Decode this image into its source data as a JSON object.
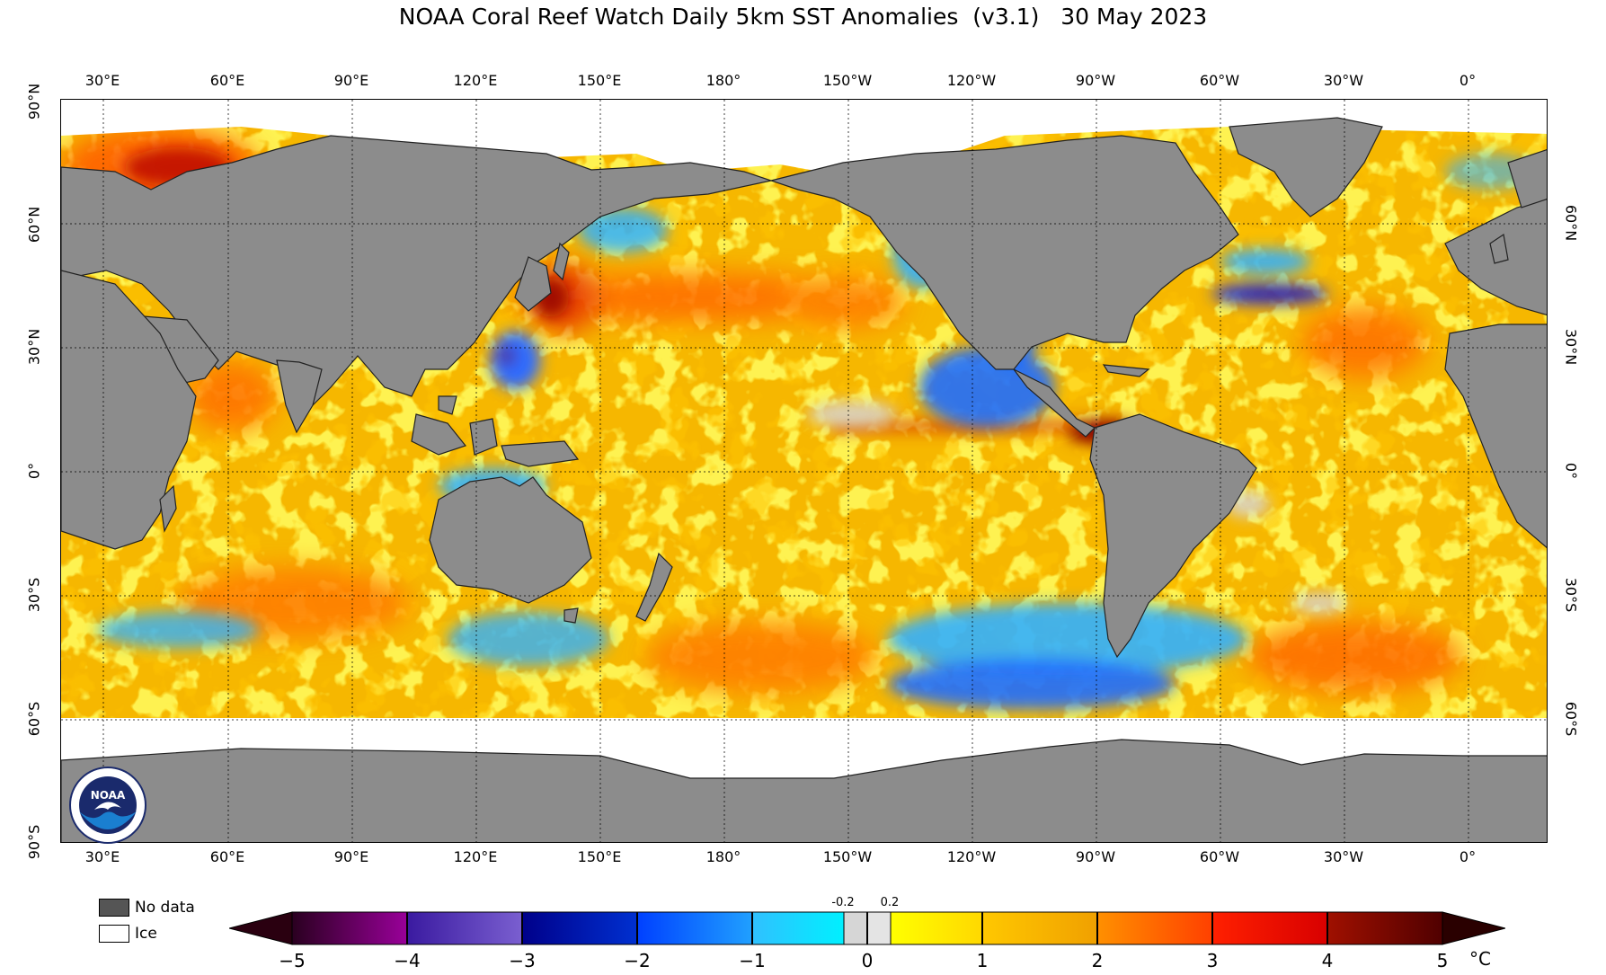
{
  "title": "NOAA Coral Reef Watch Daily 5km SST Anomalies  (v3.1)   30 May 2023",
  "lon_labels": [
    "30°E",
    "60°E",
    "90°E",
    "120°E",
    "150°E",
    "180°",
    "150°W",
    "120°W",
    "90°W",
    "60°W",
    "30°W",
    "0°"
  ],
  "lat_labels_left": [
    "90°N",
    "60°N",
    "30°N",
    "0°",
    "30°S",
    "60°S",
    "90°S"
  ],
  "lat_labels_right": [
    "60°N",
    "30°N",
    "0°",
    "30°S",
    "60°S"
  ],
  "legend": {
    "no_data": "No data",
    "ice": "Ice"
  },
  "colorbar": {
    "ticks": [
      "−5",
      "−4",
      "−3",
      "−2",
      "−1",
      "0",
      "1",
      "2",
      "3",
      "4",
      "5"
    ],
    "minor_left": "-0.2",
    "minor_right": "0.2",
    "unit": "°C",
    "colors": {
      "neg5_neg4": [
        "#2a0020",
        "#990099"
      ],
      "neg4_neg3": [
        "#3a1aa0",
        "#7a5fd0"
      ],
      "neg3_neg2": [
        "#00008a",
        "#0030d0"
      ],
      "neg2_neg1": [
        "#0040ff",
        "#20a0ff"
      ],
      "neg1_neg02": [
        "#30c0ff",
        "#00f0ff"
      ],
      "neutral": "#d8d8d8",
      "p02_1": [
        "#ffff00",
        "#ffd800"
      ],
      "p1_2": [
        "#ffc800",
        "#f0a000"
      ],
      "p2_3": [
        "#ff9000",
        "#ff4000"
      ],
      "p3_4": [
        "#ff2000",
        "#d80000"
      ],
      "p4_5": [
        "#a01000",
        "#500000"
      ]
    }
  },
  "colors": {
    "land": "#8c8c8c",
    "ocean_base": "#f5b800",
    "ice": "#ffffff",
    "warm": "#ff6a00",
    "hot": "#b01000",
    "cool": "#25a5ff",
    "cold": "#0a3cd8"
  },
  "logo": {
    "text": "NOAA"
  }
}
